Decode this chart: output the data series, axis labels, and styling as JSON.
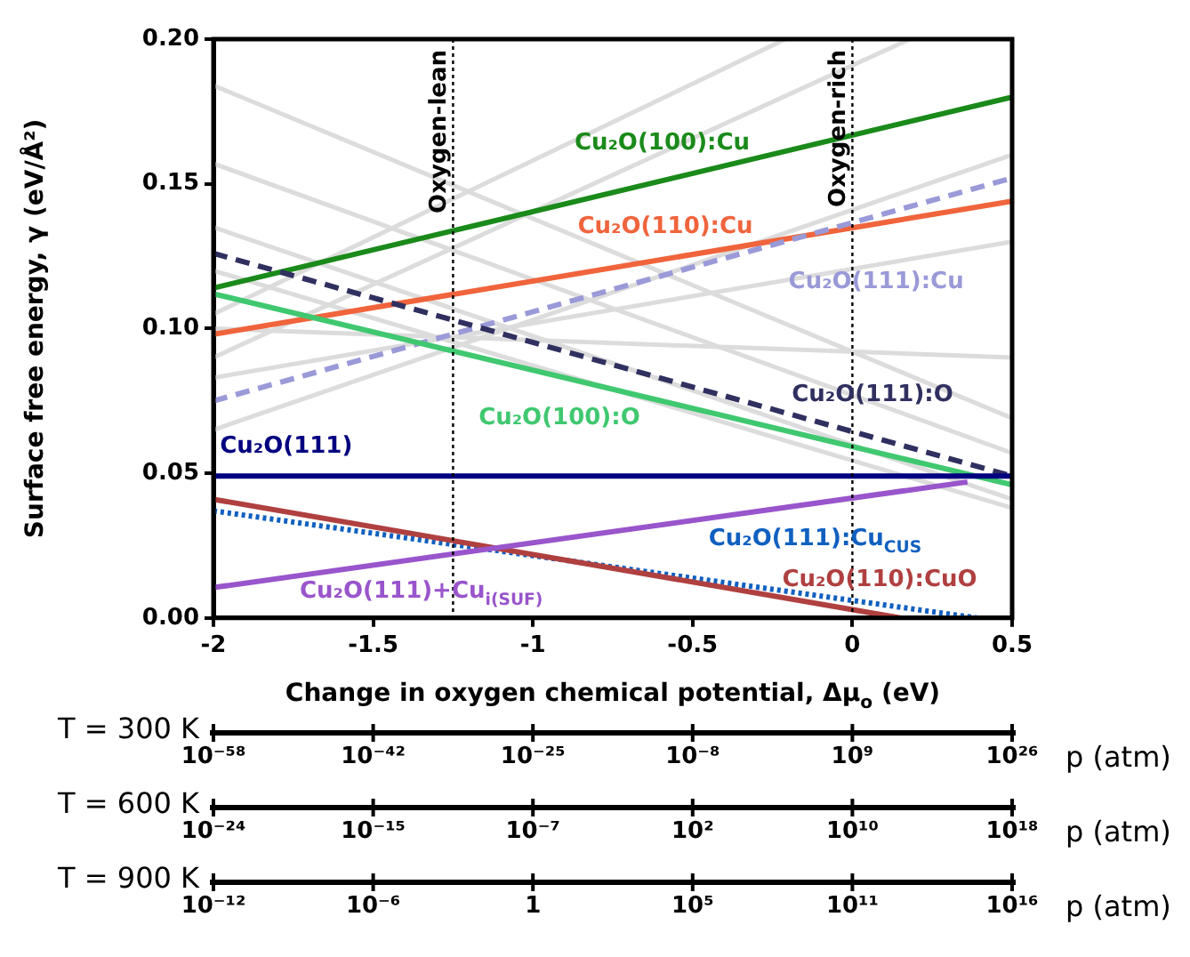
{
  "chart_data": [
    {
      "type": "line",
      "xlabel": "Change in oxygen chemical potential, Δμ$_{o}$ (eV)",
      "ylabel": "Surface free energy, γ (eV/Å²)",
      "xlim": [
        -2,
        0.5
      ],
      "xticks": [
        -2,
        -1.5,
        -1,
        -0.5,
        0,
        0.5
      ],
      "ylim": [
        0,
        0.2
      ],
      "yticks": [
        {
          "value": 0,
          "label": "0.00"
        },
        {
          "value": 0.05,
          "label": "0.05"
        },
        {
          "value": 0.1,
          "label": "0.10"
        },
        {
          "value": 0.15,
          "label": "0.15"
        },
        {
          "value": 0.2,
          "label": "0.20"
        }
      ],
      "ref_lines": [
        {
          "axis": "x",
          "value": -1.25,
          "label": "Oxygen-lean",
          "color": "#000000",
          "line_style": "dotted"
        },
        {
          "axis": "x",
          "value": 0,
          "label": "Oxygen-rich",
          "color": "#000000",
          "line_style": "dotted"
        }
      ],
      "series": [
        {
          "color": "#dcdcdc",
          "x": [
            -2,
            -0.21
          ],
          "values": [
            0.105,
            0.2
          ]
        },
        {
          "color": "#dcdcdc",
          "x": [
            -2,
            0.18
          ],
          "values": [
            0.09,
            0.2
          ]
        },
        {
          "color": "#dcdcdc",
          "x": [
            -2,
            0.5
          ],
          "values": [
            0.065,
            0.16
          ]
        },
        {
          "color": "#dcdcdc",
          "x": [
            -2,
            0.5
          ],
          "values": [
            0.083,
            0.13
          ]
        },
        {
          "color": "#dcdcdc",
          "x": [
            -2,
            0.5
          ],
          "values": [
            0.184,
            0.069
          ]
        },
        {
          "color": "#dcdcdc",
          "x": [
            -2,
            0.5
          ],
          "values": [
            0.157,
            0.057
          ]
        },
        {
          "color": "#dcdcdc",
          "x": [
            -2,
            0.5
          ],
          "values": [
            0.135,
            0.041
          ]
        },
        {
          "color": "#dcdcdc",
          "x": [
            -2,
            0.5
          ],
          "values": [
            0.12,
            0.038
          ]
        },
        {
          "color": "#dcdcdc",
          "x": [
            -2,
            0.5
          ],
          "values": [
            0.1,
            0.09
          ]
        },
        {
          "name": "Cu₂O(100):Cu",
          "color": "#1a8a1a",
          "x": [
            -2,
            0.5
          ],
          "values": [
            0.114,
            0.18
          ],
          "line_style": "solid"
        },
        {
          "name": "Cu₂O(110):Cu",
          "color": "#f0643c",
          "x": [
            -2,
            0.5
          ],
          "values": [
            0.098,
            0.144
          ],
          "line_style": "solid"
        },
        {
          "name": "Cu₂O(111):Cu",
          "color": "#9a9ad8",
          "x": [
            -2,
            0.5
          ],
          "values": [
            0.075,
            0.152
          ],
          "line_style": "dashed"
        },
        {
          "name": "Cu₂O(111):O",
          "color": "#303060",
          "x": [
            -2,
            0.5
          ],
          "values": [
            0.126,
            0.049
          ],
          "line_style": "dashed"
        },
        {
          "name": "Cu₂O(100):O",
          "color": "#40c870",
          "x": [
            -2,
            0.5
          ],
          "values": [
            0.112,
            0.046
          ],
          "line_style": "solid"
        },
        {
          "name": "Cu₂O(111)",
          "color": "#000080",
          "x": [
            -2,
            0.5
          ],
          "values": [
            0.049,
            0.049
          ],
          "line_style": "solid"
        },
        {
          "name": "Cu₂O(111):Cu$_{CUS}$",
          "color": "#1060c0",
          "x": [
            -2,
            0.39
          ],
          "values": [
            0.037,
            0
          ],
          "line_style": "dotted"
        },
        {
          "name": "Cu₂O(110):CuO",
          "color": "#b04040",
          "x": [
            -2,
            0.15
          ],
          "values": [
            0.041,
            0
          ],
          "line_style": "solid"
        },
        {
          "name": "Cu₂O(111)+Cu$_{i(SUF)}$",
          "color": "#9955cc",
          "x": [
            -2,
            0.36
          ],
          "values": [
            0.0105,
            0.047
          ],
          "line_style": "solid"
        }
      ]
    },
    {
      "type": "other",
      "title": "T = 300 K",
      "xlabel": "p (atm)",
      "annotations": [
        "10⁻⁵⁸",
        "10⁻⁴²",
        "10⁻²⁵",
        "10⁻⁸",
        "10⁹",
        "10²⁶"
      ]
    },
    {
      "type": "other",
      "title": "T = 600 K",
      "xlabel": "p (atm)",
      "annotations": [
        "10⁻²⁴",
        "10⁻¹⁵",
        "10⁻⁷",
        "10²",
        "10¹⁰",
        "10¹⁸"
      ]
    },
    {
      "type": "other",
      "title": "T = 900 K",
      "xlabel": "p (atm)",
      "annotations": [
        "10⁻¹²",
        "10⁻⁶",
        "1",
        "10⁵",
        "10¹¹",
        "10¹⁶"
      ]
    }
  ]
}
